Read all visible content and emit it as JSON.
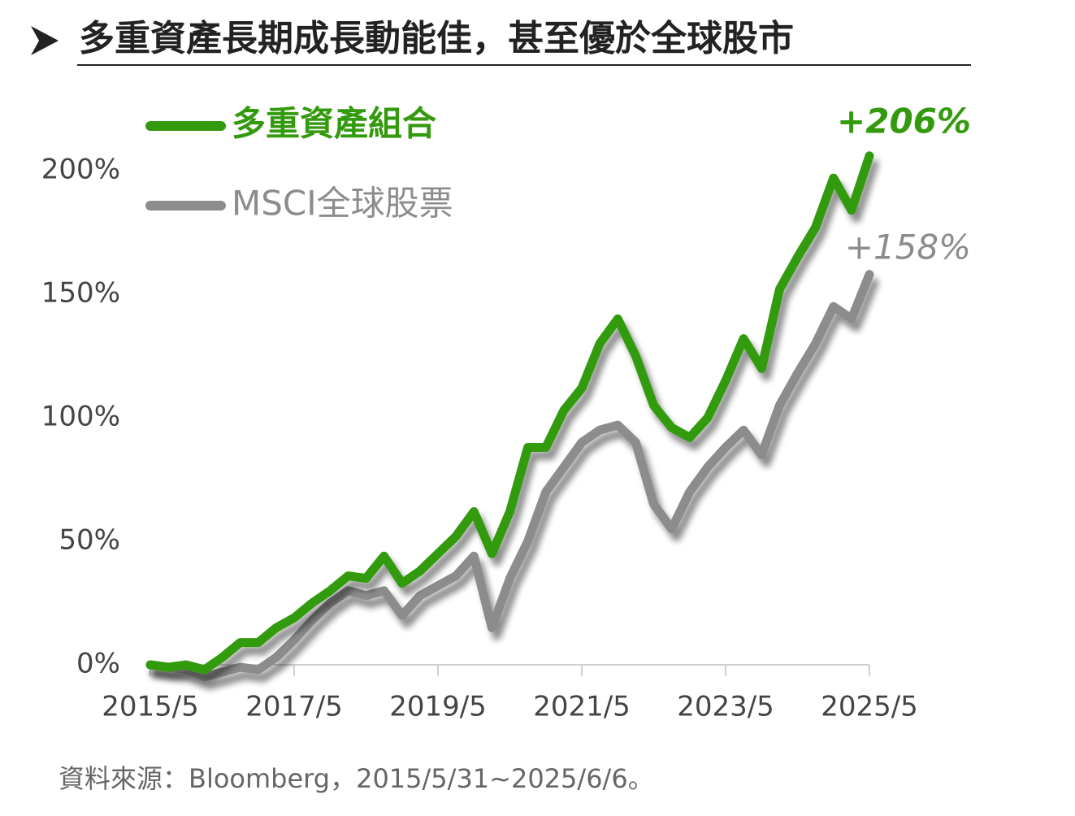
{
  "chart_data": {
    "type": "line",
    "title": "多重資產長期成長動能佳，甚至優於全球股市",
    "categories": [
      "2015/5",
      "2015/8",
      "2015/11",
      "2016/2",
      "2016/5",
      "2016/8",
      "2016/11",
      "2017/2",
      "2017/5",
      "2017/8",
      "2017/11",
      "2018/2",
      "2018/5",
      "2018/8",
      "2018/11",
      "2019/2",
      "2019/5",
      "2019/8",
      "2019/11",
      "2020/2",
      "2020/5",
      "2020/8",
      "2020/11",
      "2021/2",
      "2021/5",
      "2021/8",
      "2021/11",
      "2022/2",
      "2022/5",
      "2022/8",
      "2022/11",
      "2023/2",
      "2023/5",
      "2023/8",
      "2023/11",
      "2024/2",
      "2024/5",
      "2024/8",
      "2024/11",
      "2025/2",
      "2025/5"
    ],
    "series": [
      {
        "name": "多重資產組合",
        "color": "#339a0e",
        "values": [
          0,
          -1,
          0,
          -2,
          3,
          9,
          9,
          15,
          19,
          25,
          30,
          36,
          35,
          44,
          33,
          38,
          45,
          52,
          62,
          45,
          62,
          88,
          88,
          103,
          112,
          130,
          140,
          125,
          105,
          96,
          92,
          100,
          115,
          132,
          120,
          152,
          165,
          177,
          197,
          184,
          206
        ]
      },
      {
        "name": "MSCI全球股票",
        "color": "#8c8c8c",
        "values": [
          0,
          -1,
          -2,
          -5,
          -3,
          -1,
          -2,
          3,
          10,
          18,
          25,
          30,
          28,
          30,
          20,
          28,
          32,
          36,
          44,
          15,
          35,
          50,
          70,
          80,
          90,
          95,
          97,
          90,
          65,
          55,
          70,
          80,
          88,
          95,
          85,
          105,
          118,
          130,
          145,
          140,
          158
        ]
      }
    ],
    "annotations": [
      "+206%",
      "+158%"
    ],
    "xticks": [
      "2015/5",
      "2017/5",
      "2019/5",
      "2021/5",
      "2023/5",
      "2025/5"
    ],
    "ylim": [
      0,
      200
    ],
    "yticks": [
      {
        "value": 0,
        "label": "0%"
      },
      {
        "value": 50,
        "label": "50%"
      },
      {
        "value": 100,
        "label": "100%"
      },
      {
        "value": 150,
        "label": "150%"
      },
      {
        "value": 200,
        "label": "200%"
      }
    ],
    "source": "資料來源：Bloomberg，2015/5/31~2025/6/6。"
  }
}
